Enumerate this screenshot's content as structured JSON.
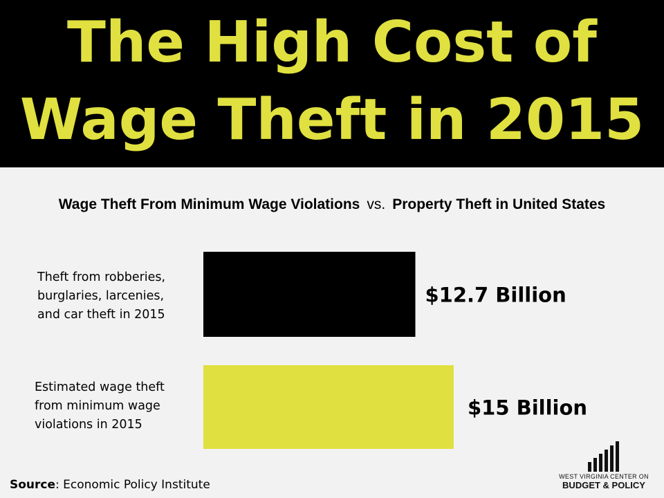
{
  "title": {
    "line1": "The High Cost of",
    "line2": "Wage Theft in 2015"
  },
  "subtitle": {
    "left": "Wage Theft From Minimum Wage Violations",
    "vs": "vs.",
    "right": "Property Theft in United States"
  },
  "chart_data": {
    "type": "bar",
    "orientation": "horizontal",
    "categories": [
      "Theft from robberies,\nburglaries, larcenies,\nand car theft in 2015",
      "Estimated wage theft\nfrom minimum wage\nviolations in 2015"
    ],
    "values": [
      12.7,
      15
    ],
    "data_labels": [
      "$12.7 Billion",
      "$15 Billion"
    ],
    "colors": [
      "#000000",
      "#e0e040"
    ],
    "grid": false,
    "legend": "none"
  },
  "source": {
    "label": "Source",
    "text": "Economic Policy Institute"
  },
  "logo": {
    "line1": "WEST VIRGINIA CENTER ON",
    "line2": "BUDGET & POLICY",
    "icon": "bar-chart-logo-icon"
  },
  "colors": {
    "header_bg": "#000000",
    "title": "#e0e040",
    "background": "#f2f2f2"
  }
}
